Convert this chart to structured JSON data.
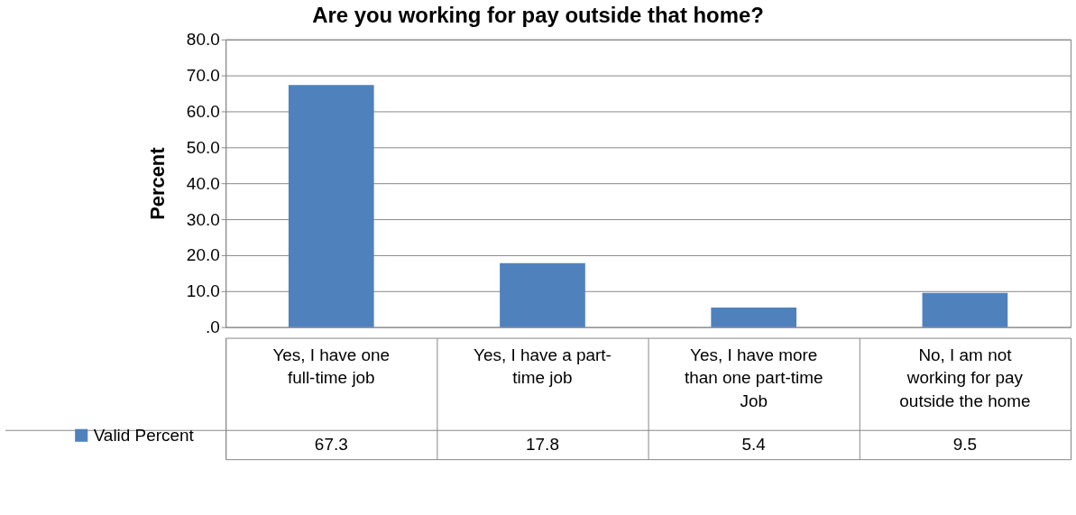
{
  "chart_data": {
    "type": "bar",
    "title": "Are you working for pay outside that home?",
    "ylabel": "Percent",
    "categories": [
      "Yes, I have one full-time job",
      "Yes, I have a part-time job",
      "Yes, I have more than one part-time Job",
      "No, I am not working for pay outside the home"
    ],
    "series": [
      {
        "name": "Valid Percent",
        "color": "#4f81bd",
        "values": [
          67.3,
          17.8,
          5.4,
          9.5
        ]
      }
    ],
    "ylim": [
      0,
      80
    ],
    "yticks": [
      {
        "value": 0,
        "label": ".0"
      },
      {
        "value": 10,
        "label": "10.0"
      },
      {
        "value": 20,
        "label": "20.0"
      },
      {
        "value": 30,
        "label": "30.0"
      },
      {
        "value": 40,
        "label": "40.0"
      },
      {
        "value": 50,
        "label": "50.0"
      },
      {
        "value": 60,
        "label": "60.0"
      },
      {
        "value": 70,
        "label": "70.0"
      },
      {
        "value": 80,
        "label": "80.0"
      }
    ],
    "grid": "y",
    "data_labels": true,
    "legend": "bottom left"
  }
}
